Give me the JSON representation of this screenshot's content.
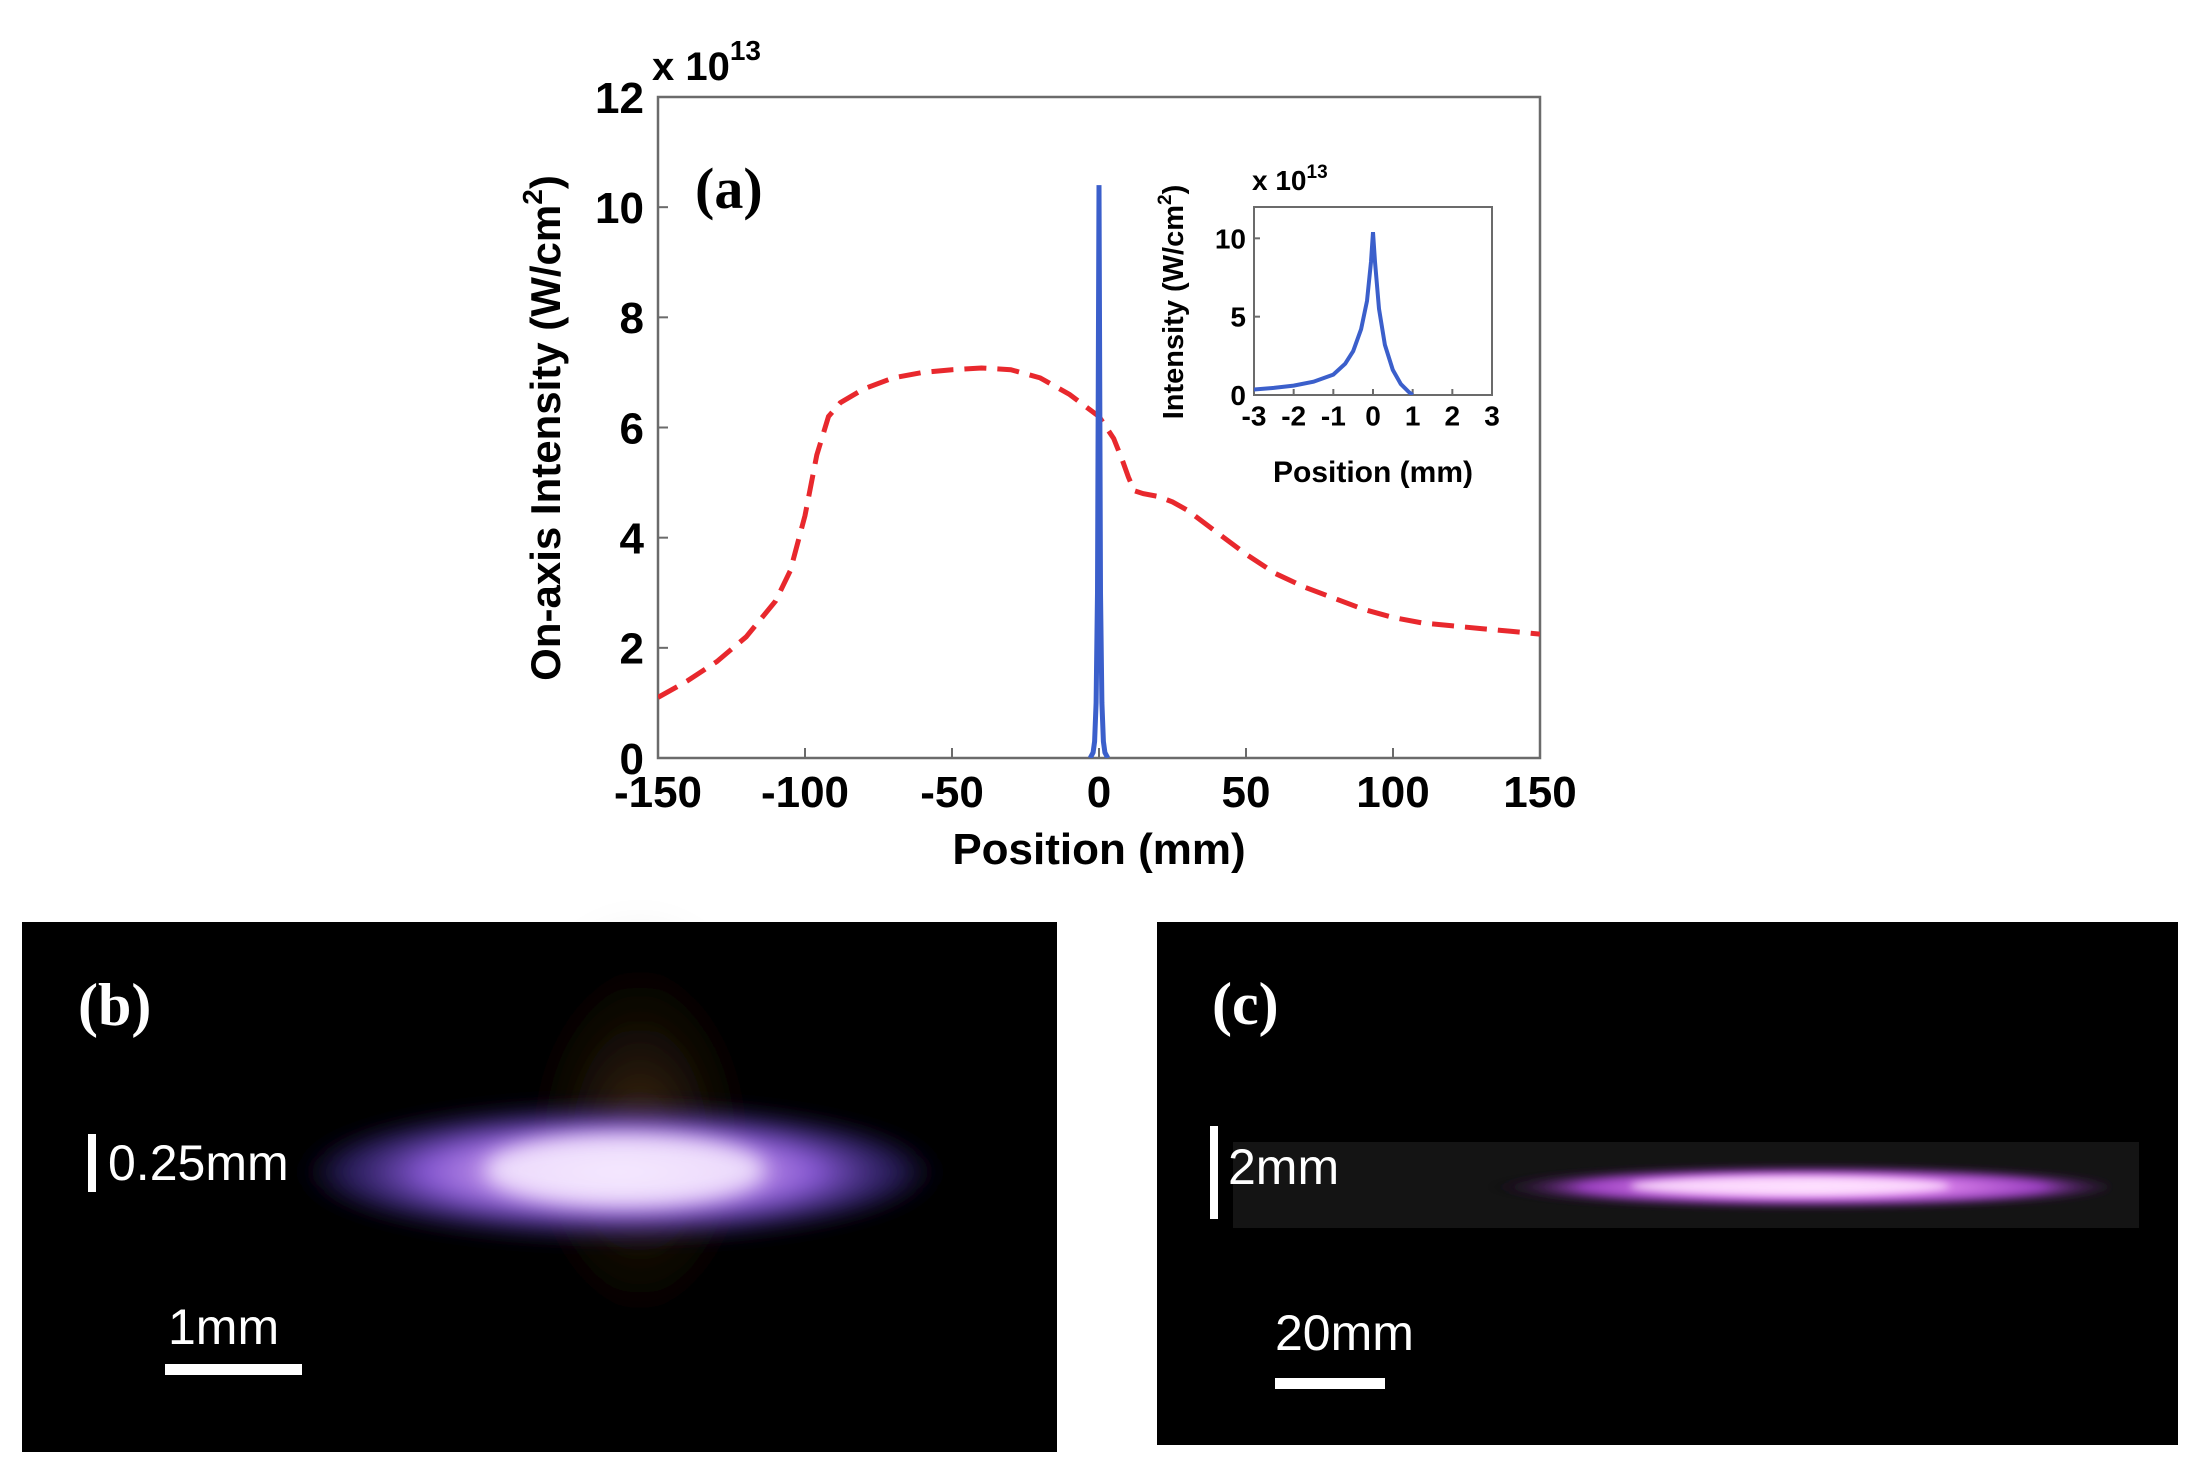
{
  "chart_data": [
    {
      "type": "line",
      "panel_label": "(a)",
      "xlabel": "Position (mm)",
      "ylabel": "On-axis Intensity (W/cm",
      "ylabel_sup": "2",
      "ylabel_close": ")",
      "y_multiplier_base": "x 10",
      "y_multiplier_exp": "13",
      "xlim": [
        -150,
        150
      ],
      "ylim": [
        0,
        12
      ],
      "xticks": [
        -150,
        -100,
        -50,
        0,
        50,
        100,
        150
      ],
      "yticks": [
        0,
        2,
        4,
        6,
        8,
        10,
        12
      ],
      "series": [
        {
          "name": "dashed-red",
          "color": "#e8282d",
          "style": "dashed",
          "x": [
            -150,
            -140,
            -130,
            -120,
            -110,
            -105,
            -100,
            -96,
            -92,
            -88,
            -80,
            -70,
            -60,
            -50,
            -40,
            -30,
            -20,
            -10,
            0,
            5,
            8,
            10,
            12,
            15,
            20,
            25,
            30,
            40,
            50,
            60,
            70,
            80,
            90,
            100,
            110,
            120,
            130,
            140,
            150
          ],
          "y": [
            1.1,
            1.4,
            1.75,
            2.2,
            2.85,
            3.4,
            4.4,
            5.5,
            6.2,
            6.45,
            6.7,
            6.9,
            7.0,
            7.05,
            7.08,
            7.05,
            6.9,
            6.6,
            6.2,
            5.8,
            5.4,
            5.1,
            4.85,
            4.8,
            4.75,
            4.65,
            4.5,
            4.1,
            3.7,
            3.35,
            3.1,
            2.9,
            2.7,
            2.55,
            2.45,
            2.4,
            2.35,
            2.3,
            2.25
          ]
        },
        {
          "name": "solid-blue",
          "color": "#3b5fcb",
          "style": "solid",
          "x": [
            -3,
            -2,
            -1.5,
            -1,
            -0.5,
            0,
            0.5,
            1,
            1.5,
            2,
            3
          ],
          "y": [
            0.0,
            0.1,
            0.3,
            1.0,
            3.0,
            10.4,
            3.0,
            1.0,
            0.3,
            0.1,
            0.0
          ]
        }
      ]
    },
    {
      "type": "line",
      "inset": true,
      "ylabel": "Intensity (W/cm",
      "ylabel_sup": "2",
      "ylabel_close": ")",
      "xlabel": "Position (mm)",
      "y_multiplier_base": "x 10",
      "y_multiplier_exp": "13",
      "xlim": [
        -3,
        3
      ],
      "ylim": [
        0,
        12
      ],
      "xticks": [
        -3,
        -2,
        -1,
        0,
        1,
        2,
        3
      ],
      "yticks": [
        0,
        5,
        10
      ],
      "series": [
        {
          "name": "inset-blue",
          "color": "#3b5fcb",
          "x": [
            -3,
            -2.5,
            -2,
            -1.5,
            -1,
            -0.7,
            -0.5,
            -0.3,
            -0.15,
            -0.05,
            0,
            0.05,
            0.15,
            0.3,
            0.5,
            0.7,
            0.9,
            1.0
          ],
          "y": [
            0.35,
            0.45,
            0.6,
            0.85,
            1.3,
            2.0,
            2.8,
            4.2,
            6.0,
            8.5,
            10.4,
            8.5,
            5.5,
            3.2,
            1.6,
            0.7,
            0.2,
            0.0
          ]
        }
      ]
    }
  ],
  "panels": {
    "b": {
      "label": "(b)",
      "vertical_scale": "0.25mm",
      "horizontal_scale": "1mm"
    },
    "c": {
      "label": "(c)",
      "vertical_scale": "2mm",
      "horizontal_scale": "20mm"
    }
  }
}
